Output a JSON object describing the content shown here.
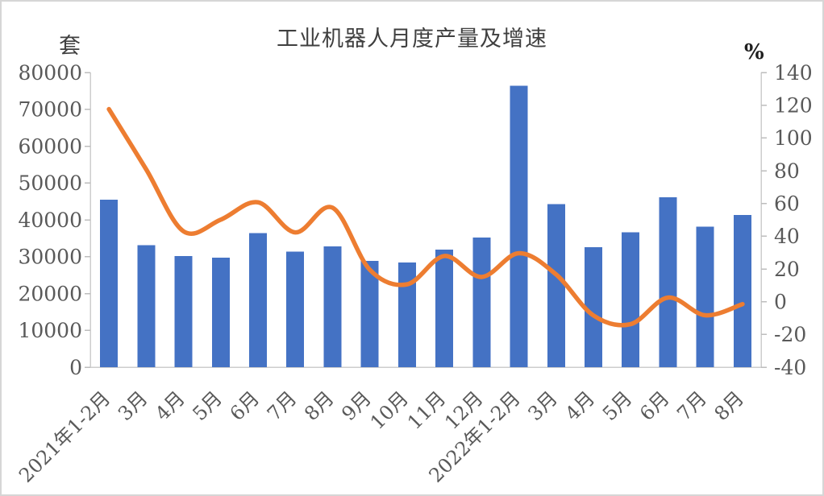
{
  "chart_data": {
    "type": "bar",
    "title": "工业机器人月度产量及增速",
    "categories": [
      "2021年1-2月",
      "3月",
      "4月",
      "5月",
      "6月",
      "7月",
      "8月",
      "9月",
      "10月",
      "11月",
      "12月",
      "2022年1-2月",
      "3月",
      "4月",
      "5月",
      "6月",
      "7月",
      "8月"
    ],
    "series": [
      {
        "name": "产量",
        "type": "bar",
        "y_axis": "left",
        "color": "#4472C4",
        "values": [
          45433,
          33073,
          30178,
          29743,
          36383,
          31342,
          32828,
          28823,
          28460,
          31915,
          35175,
          76381,
          44258,
          32535,
          36616,
          46144,
          38148,
          41261
        ]
      },
      {
        "name": "增速",
        "type": "line",
        "y_axis": "right",
        "color": "#ED7D31",
        "values": [
          117.6,
          80.8,
          43.0,
          50.1,
          60.7,
          42.3,
          57.4,
          19.5,
          10.6,
          27.9,
          15.1,
          29.6,
          16.6,
          -8.4,
          -13.7,
          2.5,
          -8.3,
          -1.5
        ]
      }
    ],
    "left_axis": {
      "unit": "套",
      "min": 0,
      "max": 80000,
      "tick_step": 10000,
      "tick_labels": [
        "80000",
        "70000",
        "60000",
        "50000",
        "40000",
        "30000",
        "20000",
        "10000",
        "0"
      ]
    },
    "right_axis": {
      "unit": "%",
      "min": -40,
      "max": 140,
      "tick_step": 20,
      "tick_labels": [
        "140",
        "120",
        "100",
        "80",
        "60",
        "40",
        "20",
        "0",
        "-20",
        "-40"
      ]
    },
    "grid": false,
    "legend": "none"
  }
}
